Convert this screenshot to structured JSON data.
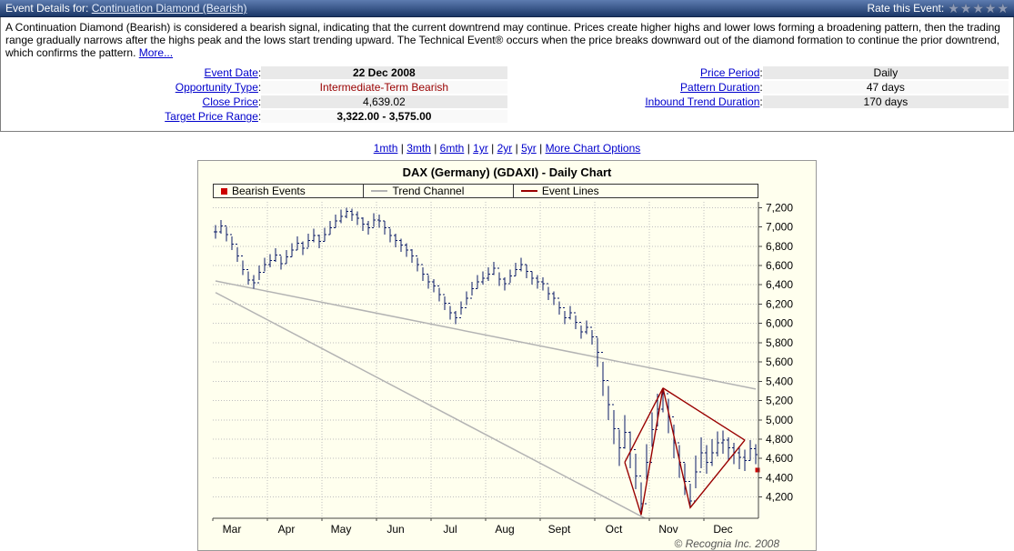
{
  "header": {
    "label": "Event Details for:",
    "event_link": "Continuation Diamond (Bearish)",
    "rate_label": "Rate this Event:",
    "star_glyph": "★"
  },
  "description": {
    "text": "A Continuation Diamond (Bearish) is considered a bearish signal, indicating that the current downtrend may continue. Prices create higher highs and lower lows forming a broadening pattern, then the trading range gradually narrows after the highs peak and the lows start trending upward. The Technical Event® occurs when the price breaks downward out of the diamond formation to continue the prior downtrend, which confirms the pattern.",
    "more_link": "More..."
  },
  "details": {
    "left": [
      {
        "label": "Event Date",
        "value": "22 Dec 2008"
      },
      {
        "label": "Opportunity Type",
        "value": "Intermediate-Term Bearish"
      },
      {
        "label": "Close Price",
        "value": "4,639.02"
      },
      {
        "label": "Target Price Range",
        "value": "3,322.00 - 3,575.00"
      }
    ],
    "right": [
      {
        "label": "Price Period",
        "value": "Daily"
      },
      {
        "label": "Pattern Duration",
        "value": "47 days"
      },
      {
        "label": "Inbound Trend Duration",
        "value": "170 days"
      }
    ]
  },
  "chart_links": [
    "1mth",
    "3mth",
    "6mth",
    "1yr",
    "2yr",
    "5yr",
    "More Chart Options"
  ],
  "chart_data": {
    "type": "bar",
    "subtype": "ohlc-daily",
    "title": "DAX (Germany) (GDAXI) - Daily Chart",
    "legend": [
      {
        "label": "Bearish Events",
        "marker": "square",
        "color": "#cc0000"
      },
      {
        "label": "Trend Channel",
        "marker": "line",
        "color": "#b3b3b3"
      },
      {
        "label": "Event Lines",
        "marker": "line",
        "color": "#990000"
      }
    ],
    "ylim": [
      3980,
      7260
    ],
    "y_ticks": [
      4200,
      4400,
      4600,
      4800,
      5000,
      5200,
      5400,
      5600,
      5800,
      6000,
      6200,
      6400,
      6600,
      6800,
      7000,
      7200
    ],
    "y_tick_labels": [
      "4,200",
      "4,400",
      "4,600",
      "4,800",
      "5,000",
      "5,200",
      "5,400",
      "5,600",
      "5,800",
      "6,000",
      "6,200",
      "6,400",
      "6,600",
      "6,800",
      "7,000",
      "7,200"
    ],
    "months": [
      "Mar",
      "Apr",
      "May",
      "Jun",
      "Jul",
      "Aug",
      "Sept",
      "Oct",
      "Nov",
      "Dec"
    ],
    "bars_per_month": 10,
    "grid": true,
    "legend_position": "top",
    "bars_high_low_close": [
      [
        7020,
        6880,
        6950
      ],
      [
        7070,
        6930,
        7010
      ],
      [
        7000,
        6850,
        6920
      ],
      [
        6900,
        6760,
        6820
      ],
      [
        6790,
        6640,
        6700
      ],
      [
        6650,
        6500,
        6560
      ],
      [
        6540,
        6400,
        6450
      ],
      [
        6500,
        6360,
        6420
      ],
      [
        6600,
        6450,
        6530
      ],
      [
        6680,
        6540,
        6610
      ],
      [
        6720,
        6580,
        6650
      ],
      [
        6780,
        6640,
        6710
      ],
      [
        6700,
        6560,
        6620
      ],
      [
        6760,
        6620,
        6690
      ],
      [
        6830,
        6690,
        6760
      ],
      [
        6900,
        6760,
        6830
      ],
      [
        6850,
        6710,
        6780
      ],
      [
        6930,
        6790,
        6860
      ],
      [
        6980,
        6840,
        6910
      ],
      [
        6920,
        6780,
        6850
      ],
      [
        6990,
        6850,
        6920
      ],
      [
        7060,
        6920,
        6990
      ],
      [
        7130,
        6990,
        7060
      ],
      [
        7180,
        7040,
        7110
      ],
      [
        7200,
        7090,
        7160
      ],
      [
        7190,
        7060,
        7130
      ],
      [
        7160,
        7020,
        7090
      ],
      [
        7100,
        6960,
        7030
      ],
      [
        7060,
        6920,
        6990
      ],
      [
        7140,
        7000,
        7070
      ],
      [
        7130,
        6990,
        7060
      ],
      [
        7060,
        6920,
        6990
      ],
      [
        6980,
        6840,
        6910
      ],
      [
        6930,
        6790,
        6860
      ],
      [
        6880,
        6740,
        6810
      ],
      [
        6830,
        6690,
        6760
      ],
      [
        6770,
        6630,
        6700
      ],
      [
        6680,
        6540,
        6610
      ],
      [
        6580,
        6440,
        6510
      ],
      [
        6500,
        6360,
        6430
      ],
      [
        6460,
        6320,
        6390
      ],
      [
        6370,
        6230,
        6300
      ],
      [
        6280,
        6140,
        6210
      ],
      [
        6180,
        6040,
        6110
      ],
      [
        6130,
        5990,
        6060
      ],
      [
        6230,
        6090,
        6160
      ],
      [
        6330,
        6190,
        6260
      ],
      [
        6430,
        6290,
        6360
      ],
      [
        6500,
        6360,
        6430
      ],
      [
        6540,
        6400,
        6470
      ],
      [
        6580,
        6440,
        6510
      ],
      [
        6640,
        6500,
        6570
      ],
      [
        6530,
        6390,
        6460
      ],
      [
        6480,
        6340,
        6410
      ],
      [
        6560,
        6420,
        6490
      ],
      [
        6630,
        6490,
        6560
      ],
      [
        6680,
        6540,
        6610
      ],
      [
        6610,
        6470,
        6540
      ],
      [
        6540,
        6400,
        6470
      ],
      [
        6500,
        6360,
        6430
      ],
      [
        6480,
        6340,
        6410
      ],
      [
        6380,
        6240,
        6310
      ],
      [
        6330,
        6190,
        6260
      ],
      [
        6230,
        6090,
        6160
      ],
      [
        6130,
        5990,
        6060
      ],
      [
        6180,
        6040,
        6110
      ],
      [
        6080,
        5940,
        6010
      ],
      [
        5980,
        5840,
        5910
      ],
      [
        6030,
        5890,
        5960
      ],
      [
        5930,
        5780,
        5860
      ],
      [
        5850,
        5550,
        5700
      ],
      [
        5600,
        5250,
        5410
      ],
      [
        5350,
        5000,
        5160
      ],
      [
        5100,
        4750,
        4910
      ],
      [
        4900,
        4520,
        4710
      ],
      [
        5050,
        4700,
        4870
      ],
      [
        4880,
        4500,
        4690
      ],
      [
        4650,
        4280,
        4420
      ],
      [
        4350,
        4015,
        4130
      ],
      [
        4750,
        4380,
        4560
      ],
      [
        5080,
        4720,
        4900
      ],
      [
        5270,
        4930,
        5110
      ],
      [
        5330,
        5080,
        5270
      ],
      [
        5220,
        4860,
        5030
      ],
      [
        4950,
        4600,
        4760
      ],
      [
        4740,
        4400,
        4560
      ],
      [
        4550,
        4220,
        4360
      ],
      [
        4340,
        4090,
        4160
      ],
      [
        4630,
        4290,
        4460
      ],
      [
        4820,
        4500,
        4660
      ],
      [
        4740,
        4440,
        4560
      ],
      [
        4800,
        4520,
        4660
      ],
      [
        4880,
        4620,
        4760
      ],
      [
        4890,
        4650,
        4790
      ],
      [
        4820,
        4580,
        4710
      ],
      [
        4760,
        4540,
        4660
      ],
      [
        4710,
        4490,
        4610
      ],
      [
        4690,
        4470,
        4580
      ],
      [
        4790,
        4580,
        4700
      ],
      [
        4750,
        4540,
        4639
      ]
    ],
    "trend_channel": [
      [
        [
          0,
          6440
        ],
        [
          99,
          5320
        ]
      ],
      [
        [
          0,
          6320
        ],
        [
          99,
          3376
        ]
      ]
    ],
    "event_lines": [
      [
        [
          75,
          4560
        ],
        [
          78,
          4015
        ],
        [
          82,
          5330
        ],
        [
          87,
          4090
        ],
        [
          97,
          4790
        ]
      ],
      [
        [
          75,
          4560
        ],
        [
          82,
          5330
        ]
      ],
      [
        [
          82,
          5330
        ],
        [
          97,
          4790
        ]
      ]
    ],
    "event_marker": {
      "bar": 99,
      "price": 4480,
      "color": "#cc0000"
    },
    "colors": {
      "bars": "#0a1a66",
      "grid": "#bfbfbf",
      "channel": "#b3b3b3",
      "event": "#990000",
      "bg": "#ffffee",
      "axis": "#444444"
    },
    "copyright": "© Recognia Inc. 2008"
  }
}
